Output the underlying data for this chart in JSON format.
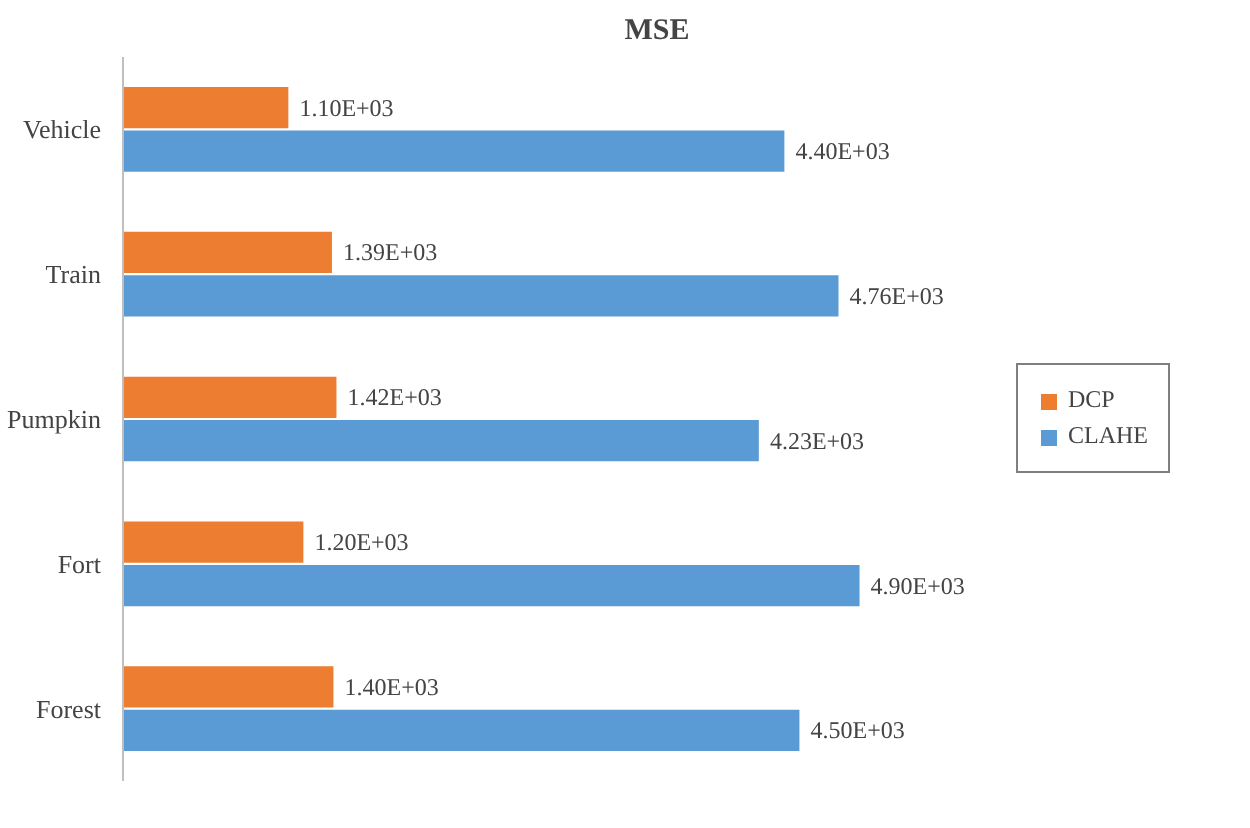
{
  "chart_data": {
    "type": "bar",
    "orientation": "horizontal",
    "title": "MSE",
    "categories": [
      "Vehicle",
      "Train",
      "Pumpkin",
      "Fort",
      "Forest"
    ],
    "legend": "right",
    "series": [
      {
        "name": "DCP",
        "color": "#ed7d31",
        "values": [
          1100,
          1390,
          1420,
          1200,
          1400
        ],
        "value_labels": [
          "1.10E+03",
          "1.39E+03",
          "1.42E+03",
          "1.20E+03",
          "1.40E+03"
        ]
      },
      {
        "name": "CLAHE",
        "color": "#5b9bd5",
        "values": [
          4400,
          4760,
          4230,
          4900,
          4500
        ],
        "value_labels": [
          "4.40E+03",
          "4.76E+03",
          "4.23E+03",
          "4.90E+03",
          "4.50E+03"
        ]
      }
    ]
  }
}
